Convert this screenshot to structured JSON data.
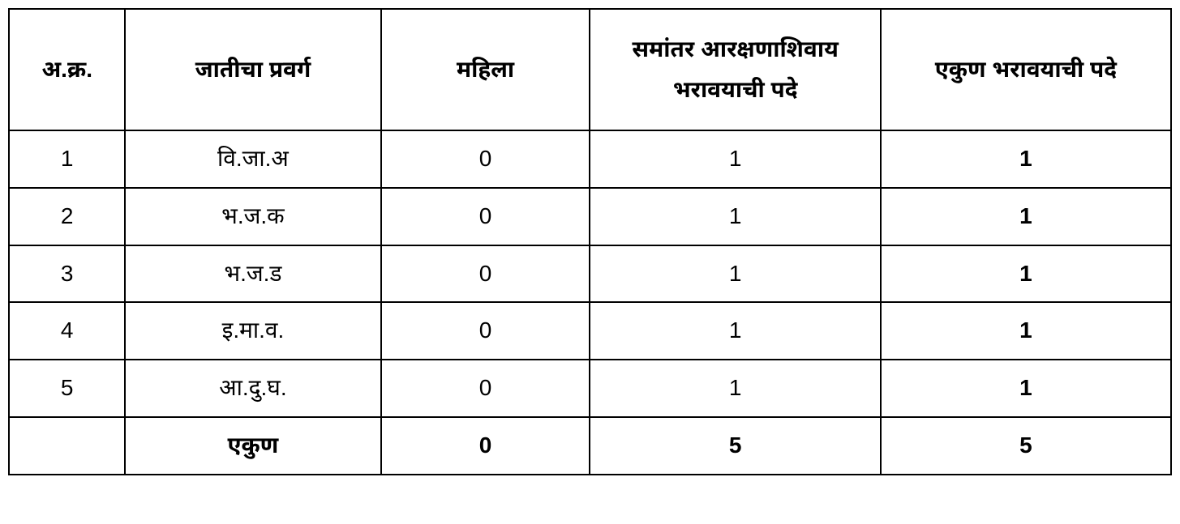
{
  "table": {
    "columns": [
      {
        "key": "sno",
        "label": "अ.क्र.",
        "width_class": "col-sno"
      },
      {
        "key": "category",
        "label": "जातीचा प्रवर्ग",
        "width_class": "col-category"
      },
      {
        "key": "mahila",
        "label": "महिला",
        "width_class": "col-mahila"
      },
      {
        "key": "samantar",
        "label": "समांतर आरक्षणाशिवाय भरावयाची पदे",
        "width_class": "col-samantar"
      },
      {
        "key": "total",
        "label": "एकुण भरावयाची पदे",
        "width_class": "col-total"
      }
    ],
    "rows": [
      {
        "sno": "1",
        "category": "वि.जा.अ",
        "mahila": "0",
        "samantar": "1",
        "total": "1"
      },
      {
        "sno": "2",
        "category": "भ.ज.क",
        "mahila": "0",
        "samantar": "1",
        "total": "1"
      },
      {
        "sno": "3",
        "category": "भ.ज.ड",
        "mahila": "0",
        "samantar": "1",
        "total": "1"
      },
      {
        "sno": "4",
        "category": "इ.मा.व.",
        "mahila": "0",
        "samantar": "1",
        "total": "1"
      },
      {
        "sno": "5",
        "category": "आ.दु.घ.",
        "mahila": "0",
        "samantar": "1",
        "total": "1"
      }
    ],
    "footer": {
      "sno": "",
      "category": "एकुण",
      "mahila": "0",
      "samantar": "5",
      "total": "5"
    },
    "styling": {
      "border_color": "#000000",
      "border_width": 2,
      "background_color": "#ffffff",
      "text_color": "#000000",
      "header_fontsize": 28,
      "cell_fontsize": 28,
      "header_bold": true,
      "total_column_bold": true,
      "footer_bold": true
    }
  }
}
